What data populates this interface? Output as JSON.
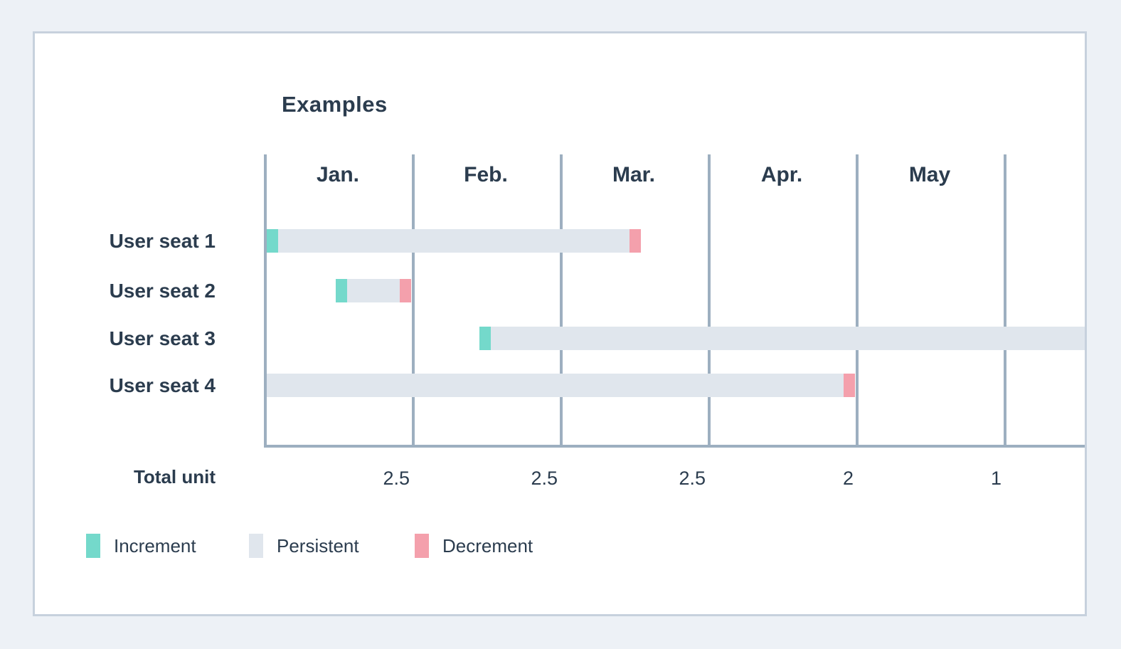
{
  "page": {
    "background": "#edf1f6"
  },
  "card": {
    "background": "#ffffff",
    "border_color": "#c7d1dd"
  },
  "chart_data": {
    "type": "bar",
    "subtype": "gantt-timeline",
    "title": "Examples",
    "columns": [
      "Jan.",
      "Feb.",
      "Mar.",
      "Apr.",
      "May"
    ],
    "x_axis": {
      "unit": "months",
      "range": [
        0,
        5.55
      ],
      "gridlines": 6,
      "grid_on": true
    },
    "rows": [
      {
        "label": "User seat 1",
        "start_month": 0.02,
        "end_month": 2.548,
        "has_increment": true,
        "has_decrement": true
      },
      {
        "label": "User seat 2",
        "start_month": 0.487,
        "end_month": 0.995,
        "has_increment": true,
        "has_decrement": true
      },
      {
        "label": "User seat 3",
        "start_month": 1.457,
        "end_month": 5.55,
        "has_increment": true,
        "has_decrement": false
      },
      {
        "label": "User seat 4",
        "start_month": 0.02,
        "end_month": 3.995,
        "has_increment": false,
        "has_decrement": true
      }
    ],
    "totals": {
      "label": "Total unit",
      "values": [
        "2.5",
        "2.5",
        "2.5",
        "2",
        "1"
      ]
    },
    "legend": [
      {
        "name": "increment",
        "label": "Increment",
        "color": "#74d9cb"
      },
      {
        "name": "persistent",
        "label": "Persistent",
        "color": "#e0e6ed"
      },
      {
        "name": "decrement",
        "label": "Decrement",
        "color": "#f4a0ac"
      }
    ],
    "colors": {
      "increment": "#74d9cb",
      "persistent": "#e0e6ed",
      "decrement": "#f4a0ac",
      "gridline": "#9dafc0",
      "text": "#2b3c4e"
    },
    "legend_position": "bottom-left"
  }
}
